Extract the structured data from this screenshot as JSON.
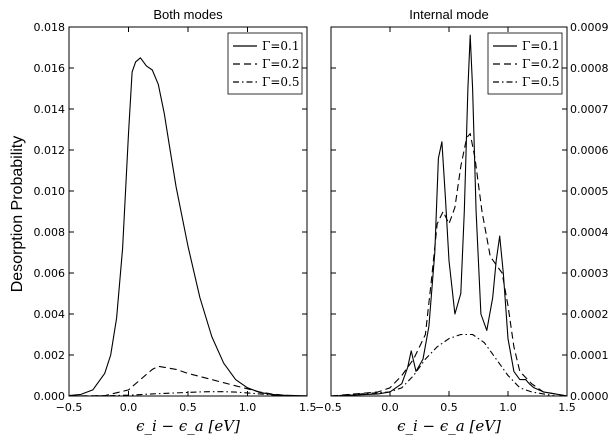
{
  "ylabel": "Desorption Probability",
  "xlabel": "ϵ_i − ϵ_a [eV]",
  "chart_data": [
    {
      "type": "line",
      "title": "Both modes",
      "xlim": [
        -0.5,
        1.5
      ],
      "ylim": [
        0,
        0.018
      ],
      "xticks": [
        -0.5,
        0.0,
        0.5,
        1.0,
        1.5
      ],
      "xtick_labels": [
        "−0.5",
        "0.0",
        "0.5",
        "1.0",
        "1.5"
      ],
      "yticks": [
        0,
        0.002,
        0.004,
        0.006,
        0.008,
        0.01,
        0.012,
        0.014,
        0.016,
        0.018
      ],
      "ytick_labels": [
        "0.000",
        "0.002",
        "0.004",
        "0.006",
        "0.008",
        "0.010",
        "0.012",
        "0.014",
        "0.016",
        "0.018"
      ],
      "ytick_side": "left",
      "legend_position": "top-right",
      "grid": false,
      "series": [
        {
          "name": "Γ=0.1",
          "style": "solid",
          "x": [
            -0.5,
            -0.4,
            -0.3,
            -0.2,
            -0.15,
            -0.1,
            -0.05,
            0.0,
            0.03,
            0.06,
            0.1,
            0.15,
            0.2,
            0.25,
            0.3,
            0.35,
            0.4,
            0.5,
            0.6,
            0.7,
            0.8,
            0.9,
            1.0,
            1.1,
            1.2,
            1.3,
            1.4,
            1.5
          ],
          "y": [
            2e-05,
            8e-05,
            0.0003,
            0.0011,
            0.002,
            0.0038,
            0.0072,
            0.0128,
            0.0158,
            0.0163,
            0.0165,
            0.0161,
            0.0159,
            0.0152,
            0.0138,
            0.012,
            0.0102,
            0.0073,
            0.0048,
            0.0029,
            0.0016,
            0.0008,
            0.0004,
            0.00018,
            8e-05,
            4e-05,
            2e-05,
            1e-05
          ]
        },
        {
          "name": "Γ=0.2",
          "style": "dashed",
          "x": [
            -0.5,
            -0.2,
            0.0,
            0.1,
            0.2,
            0.25,
            0.3,
            0.4,
            0.5,
            0.6,
            0.7,
            0.8,
            0.9,
            1.0,
            1.1,
            1.2,
            1.3
          ],
          "y": [
            0,
            2e-05,
            0.0003,
            0.0008,
            0.0013,
            0.00145,
            0.0014,
            0.0013,
            0.0011,
            0.00095,
            0.0008,
            0.00065,
            0.0005,
            0.00035,
            0.0002,
            0.0001,
            4e-05
          ]
        },
        {
          "name": "Γ=0.5",
          "style": "dashdot",
          "x": [
            -0.5,
            -0.2,
            0.0,
            0.2,
            0.4,
            0.6,
            0.7,
            0.8,
            0.9,
            1.0,
            1.1,
            1.2,
            1.3
          ],
          "y": [
            0,
            1e-05,
            4e-05,
            0.0001,
            0.00015,
            0.0002,
            0.00021,
            0.00021,
            0.00019,
            0.00015,
            0.0001,
            6e-05,
            3e-05
          ]
        }
      ]
    },
    {
      "type": "line",
      "title": "Internal mode",
      "xlim": [
        -0.5,
        1.5
      ],
      "ylim": [
        0,
        0.0009
      ],
      "xticks": [
        -0.5,
        0.0,
        0.5,
        1.0,
        1.5
      ],
      "xtick_labels": [
        "−0.5",
        "0.0",
        "0.5",
        "1.0",
        "1.5"
      ],
      "yticks": [
        0,
        0.0001,
        0.0002,
        0.0003,
        0.0004,
        0.0005,
        0.0006,
        0.0007,
        0.0008,
        0.0009
      ],
      "ytick_labels": [
        "0.0000",
        "0.0001",
        "0.0002",
        "0.0003",
        "0.0004",
        "0.0005",
        "0.0006",
        "0.0007",
        "0.0008",
        "0.0009"
      ],
      "ytick_side": "right",
      "legend_position": "top-right",
      "grid": false,
      "series": [
        {
          "name": "Γ=0.1",
          "style": "solid",
          "x": [
            -0.5,
            -0.1,
            0.0,
            0.1,
            0.15,
            0.18,
            0.22,
            0.28,
            0.33,
            0.38,
            0.41,
            0.44,
            0.47,
            0.5,
            0.55,
            0.6,
            0.63,
            0.66,
            0.68,
            0.7,
            0.73,
            0.77,
            0.82,
            0.87,
            0.9,
            0.93,
            0.96,
            1.0,
            1.05,
            1.1,
            1.15,
            1.18,
            1.22,
            1.3,
            1.4,
            1.5
          ],
          "y": [
            0,
            5e-06,
            1e-05,
            3e-05,
            7e-05,
            0.00011,
            6e-05,
            9e-05,
            0.00017,
            0.00035,
            0.00058,
            0.00062,
            0.00048,
            0.00033,
            0.0002,
            0.00025,
            0.00045,
            0.00075,
            0.00088,
            0.00075,
            0.00045,
            0.0002,
            0.00016,
            0.00024,
            0.00033,
            0.00039,
            0.0003,
            0.00014,
            6e-05,
            4e-05,
            4e-05,
            3e-05,
            2e-05,
            1e-05,
            5e-06,
            0
          ]
        },
        {
          "name": "Γ=0.2",
          "style": "dashed",
          "x": [
            -0.5,
            -0.1,
            0.0,
            0.1,
            0.2,
            0.3,
            0.35,
            0.4,
            0.45,
            0.5,
            0.55,
            0.6,
            0.65,
            0.68,
            0.72,
            0.78,
            0.85,
            0.9,
            0.95,
            1.0,
            1.05,
            1.1,
            1.2,
            1.3,
            1.4,
            1.5
          ],
          "y": [
            0,
            1e-05,
            2e-05,
            5e-05,
            9e-05,
            0.00015,
            0.00028,
            0.00042,
            0.00045,
            0.00042,
            0.00046,
            0.00056,
            0.00063,
            0.00064,
            0.00058,
            0.00045,
            0.00034,
            0.00032,
            0.0003,
            0.00022,
            0.00012,
            6e-05,
            3e-05,
            1e-05,
            5e-06,
            0
          ]
        },
        {
          "name": "Γ=0.5",
          "style": "dashdot",
          "x": [
            -0.5,
            0.0,
            0.1,
            0.2,
            0.3,
            0.4,
            0.5,
            0.6,
            0.65,
            0.7,
            0.8,
            0.9,
            1.0,
            1.1,
            1.2,
            1.3,
            1.4,
            1.5
          ],
          "y": [
            0,
            1e-05,
            2e-05,
            5e-05,
            9e-05,
            0.00012,
            0.00014,
            0.00015,
            0.00015,
            0.00015,
            0.00013,
            9e-05,
            5e-05,
            2e-05,
            1e-05,
            5e-06,
            0,
            0
          ]
        }
      ]
    }
  ]
}
